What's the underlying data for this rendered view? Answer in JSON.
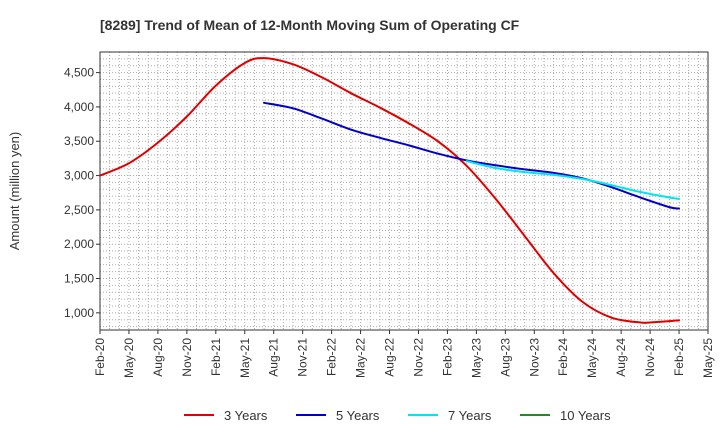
{
  "chart_data": {
    "type": "line",
    "title": "[8289]  Trend of Mean of 12-Month Moving Sum of Operating CF",
    "xlabel": "",
    "ylabel": "Amount (million yen)",
    "x_tick_labels": [
      "Feb-20",
      "May-20",
      "Aug-20",
      "Nov-20",
      "Feb-21",
      "May-21",
      "Aug-21",
      "Nov-21",
      "Feb-22",
      "May-22",
      "Aug-22",
      "Nov-22",
      "Feb-23",
      "May-23",
      "Aug-23",
      "Nov-23",
      "Feb-24",
      "May-24",
      "Aug-24",
      "Nov-24",
      "Feb-25",
      "May-25"
    ],
    "y_ticks": [
      1000,
      1500,
      2000,
      2500,
      3000,
      3500,
      4000,
      4500
    ],
    "y_tick_labels": [
      "1,000",
      "1,500",
      "2,000",
      "2,500",
      "3,000",
      "3,500",
      "4,000",
      "4,500"
    ],
    "ylim": [
      750,
      4800
    ],
    "xlim_months": [
      0,
      63
    ],
    "grid": true,
    "legend_position": "bottom",
    "series": [
      {
        "name": "3 Years",
        "color": "#e00000",
        "points": [
          [
            0,
            3000
          ],
          [
            3,
            3180
          ],
          [
            6,
            3480
          ],
          [
            9,
            3860
          ],
          [
            12,
            4310
          ],
          [
            15,
            4640
          ],
          [
            17,
            4710
          ],
          [
            20,
            4620
          ],
          [
            23,
            4430
          ],
          [
            26,
            4200
          ],
          [
            29,
            3990
          ],
          [
            32,
            3760
          ],
          [
            35,
            3500
          ],
          [
            38,
            3140
          ],
          [
            41,
            2660
          ],
          [
            44,
            2120
          ],
          [
            47,
            1580
          ],
          [
            50,
            1160
          ],
          [
            53,
            930
          ],
          [
            56,
            860
          ],
          [
            57,
            860
          ],
          [
            60,
            890
          ]
        ]
      },
      {
        "name": "5 Years",
        "color": "#0000cc",
        "points": [
          [
            17,
            4060
          ],
          [
            20,
            3980
          ],
          [
            23,
            3830
          ],
          [
            26,
            3670
          ],
          [
            29,
            3550
          ],
          [
            32,
            3440
          ],
          [
            35,
            3320
          ],
          [
            38,
            3220
          ],
          [
            41,
            3150
          ],
          [
            44,
            3090
          ],
          [
            47,
            3040
          ],
          [
            50,
            2960
          ],
          [
            53,
            2830
          ],
          [
            56,
            2680
          ],
          [
            59,
            2540
          ],
          [
            60,
            2520
          ]
        ]
      },
      {
        "name": "7 Years",
        "color": "#00e5ee",
        "points": [
          [
            38,
            3210
          ],
          [
            41,
            3110
          ],
          [
            44,
            3050
          ],
          [
            47,
            3010
          ],
          [
            50,
            2950
          ],
          [
            53,
            2860
          ],
          [
            56,
            2760
          ],
          [
            59,
            2680
          ],
          [
            60,
            2660
          ]
        ]
      },
      {
        "name": "10 Years",
        "color": "#228b22",
        "points": []
      }
    ]
  }
}
